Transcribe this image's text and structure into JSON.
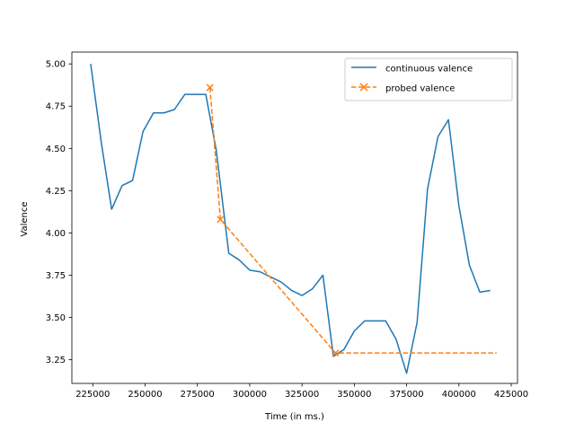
{
  "chart_data": {
    "type": "line",
    "xlabel": "Time (in ms.)",
    "ylabel": "Valence",
    "xlim": [
      215000,
      428000
    ],
    "ylim": [
      3.11,
      5.07
    ],
    "x_ticks": [
      225000,
      250000,
      275000,
      300000,
      325000,
      350000,
      375000,
      400000,
      425000
    ],
    "y_ticks": [
      3.25,
      3.5,
      3.75,
      4.0,
      4.25,
      4.5,
      4.75,
      5.0
    ],
    "x_tick_labels": [
      "225000",
      "250000",
      "275000",
      "300000",
      "325000",
      "350000",
      "375000",
      "400000",
      "425000"
    ],
    "y_tick_labels": [
      "3.25",
      "3.50",
      "3.75",
      "4.00",
      "4.25",
      "4.50",
      "4.75",
      "5.00"
    ],
    "grid": false,
    "legend_position": "top-right",
    "series": [
      {
        "name": "continuous valence",
        "color": "#1f77b4",
        "style": "solid",
        "marker": "none",
        "x": [
          224000,
          229000,
          234000,
          239000,
          244000,
          249000,
          254000,
          259000,
          264000,
          269000,
          274000,
          279000,
          284000,
          290000,
          295000,
          300000,
          305000,
          310000,
          315000,
          320000,
          325000,
          330000,
          335000,
          340000,
          345000,
          350000,
          355000,
          360000,
          365000,
          370000,
          375000,
          380000,
          385000,
          390000,
          395000,
          400000,
          405000,
          410000,
          415000
        ],
        "y": [
          5.0,
          4.54,
          4.14,
          4.28,
          4.31,
          4.6,
          4.71,
          4.71,
          4.73,
          4.82,
          4.82,
          4.82,
          4.49,
          3.88,
          3.84,
          3.78,
          3.77,
          3.74,
          3.71,
          3.66,
          3.63,
          3.67,
          3.75,
          3.27,
          3.31,
          3.42,
          3.48,
          3.48,
          3.48,
          3.37,
          3.17,
          3.47,
          4.26,
          4.57,
          4.67,
          4.16,
          3.81,
          3.65,
          3.66
        ]
      },
      {
        "name": "probed valence",
        "color": "#ff7f0e",
        "style": "dashed",
        "marker": "x",
        "x": [
          281000,
          286000,
          341000,
          418000
        ],
        "x_markers": [
          281000,
          286000,
          341000
        ],
        "y": [
          4.86,
          4.08,
          3.29,
          3.29
        ]
      }
    ]
  }
}
